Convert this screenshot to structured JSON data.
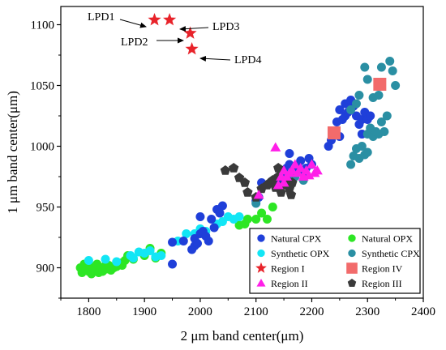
{
  "chart_data": {
    "type": "scatter",
    "xlabel": "2 μm band center(μm)",
    "ylabel": "1 μm band center(μm)",
    "xlim": [
      1750,
      2400
    ],
    "ylim": [
      875,
      1115
    ],
    "xticks": [
      1800,
      1900,
      2000,
      2100,
      2200,
      2300,
      2400
    ],
    "yticks": [
      900,
      950,
      1000,
      1050,
      1100
    ],
    "grid": false,
    "legend_position": "bottom-right",
    "colors": {
      "natural_cpx": "#1f3fd9",
      "synthetic_opx": "#12e6f5",
      "region_i": "#e8232a",
      "region_ii": "#ff1fe8",
      "natural_opx": "#2de624",
      "synthetic_cpx": "#2a8fa3",
      "region_iv": "#f26b6b",
      "region_iii": "#3a3a3a"
    },
    "series": [
      {
        "name": "Natural CPX",
        "key": "natural_cpx",
        "marker": "circle",
        "points": [
          [
            1950,
            903
          ],
          [
            1950,
            921
          ],
          [
            1970,
            922
          ],
          [
            1985,
            915
          ],
          [
            1990,
            918
          ],
          [
            1990,
            924
          ],
          [
            1995,
            920
          ],
          [
            2000,
            928
          ],
          [
            2000,
            942
          ],
          [
            2005,
            930
          ],
          [
            2010,
            926
          ],
          [
            2015,
            922
          ],
          [
            2020,
            940
          ],
          [
            2025,
            933
          ],
          [
            2030,
            948
          ],
          [
            2035,
            945
          ],
          [
            2040,
            951
          ],
          [
            2100,
            955
          ],
          [
            2105,
            958
          ],
          [
            2110,
            970
          ],
          [
            2140,
            972
          ],
          [
            2150,
            976
          ],
          [
            2155,
            982
          ],
          [
            2160,
            985
          ],
          [
            2160,
            994
          ],
          [
            2165,
            975
          ],
          [
            2170,
            980
          ],
          [
            2175,
            984
          ],
          [
            2180,
            988
          ],
          [
            2185,
            978
          ],
          [
            2190,
            982
          ],
          [
            2195,
            990
          ],
          [
            2200,
            985
          ],
          [
            2230,
            1000
          ],
          [
            2235,
            1005
          ],
          [
            2240,
            1012
          ],
          [
            2245,
            1020
          ],
          [
            2250,
            1030
          ],
          [
            2255,
            1022
          ],
          [
            2260,
            1025
          ],
          [
            2260,
            1035
          ],
          [
            2265,
            1028
          ],
          [
            2270,
            1038
          ],
          [
            2275,
            1033
          ],
          [
            2280,
            1025
          ],
          [
            2285,
            1018
          ],
          [
            2290,
            1022
          ],
          [
            2295,
            1028
          ],
          [
            2300,
            1022
          ],
          [
            2305,
            1025
          ],
          [
            2290,
            1010
          ],
          [
            2250,
            1008
          ]
        ]
      },
      {
        "name": "Synthetic OPX",
        "key": "synthetic_opx",
        "marker": "circle",
        "points": [
          [
            1800,
            906
          ],
          [
            1830,
            907
          ],
          [
            1850,
            905
          ],
          [
            1875,
            910
          ],
          [
            1880,
            908
          ],
          [
            1890,
            913
          ],
          [
            1900,
            912
          ],
          [
            1910,
            914
          ],
          [
            1920,
            909
          ],
          [
            1930,
            910
          ],
          [
            1960,
            922
          ],
          [
            1975,
            928
          ],
          [
            1990,
            928
          ],
          [
            2000,
            932
          ],
          [
            2010,
            930
          ],
          [
            2030,
            936
          ],
          [
            2040,
            938
          ],
          [
            2050,
            942
          ],
          [
            2060,
            940
          ],
          [
            2070,
            942
          ]
        ]
      },
      {
        "name": "Region I",
        "key": "region_i",
        "marker": "star",
        "points": [
          [
            1918,
            1104
          ],
          [
            1945,
            1104
          ],
          [
            1982,
            1093
          ],
          [
            1985,
            1080
          ]
        ]
      },
      {
        "name": "Region II",
        "key": "region_ii",
        "marker": "triangle",
        "points": [
          [
            2105,
            960
          ],
          [
            2135,
            999
          ],
          [
            2140,
            968
          ],
          [
            2145,
            975
          ],
          [
            2150,
            980
          ],
          [
            2150,
            970
          ],
          [
            2155,
            975
          ],
          [
            2160,
            978
          ],
          [
            2165,
            980
          ],
          [
            2170,
            985
          ],
          [
            2175,
            978
          ],
          [
            2180,
            982
          ],
          [
            2185,
            975
          ],
          [
            2190,
            980
          ],
          [
            2195,
            976
          ],
          [
            2200,
            985
          ],
          [
            2205,
            978
          ],
          [
            2210,
            980
          ]
        ]
      },
      {
        "name": "Natural OPX",
        "key": "natural_opx",
        "marker": "circle",
        "points": [
          [
            1785,
            900
          ],
          [
            1788,
            896
          ],
          [
            1792,
            903
          ],
          [
            1795,
            898
          ],
          [
            1800,
            897
          ],
          [
            1802,
            902
          ],
          [
            1805,
            895
          ],
          [
            1808,
            900
          ],
          [
            1812,
            898
          ],
          [
            1815,
            903
          ],
          [
            1818,
            896
          ],
          [
            1822,
            900
          ],
          [
            1825,
            897
          ],
          [
            1828,
            901
          ],
          [
            1832,
            899
          ],
          [
            1836,
            902
          ],
          [
            1840,
            898
          ],
          [
            1845,
            900
          ],
          [
            1850,
            901
          ],
          [
            1855,
            904
          ],
          [
            1860,
            902
          ],
          [
            1865,
            906
          ],
          [
            1870,
            910
          ],
          [
            1880,
            907
          ],
          [
            1900,
            910
          ],
          [
            1910,
            916
          ],
          [
            1920,
            908
          ],
          [
            1930,
            912
          ],
          [
            2070,
            935
          ],
          [
            2080,
            936
          ],
          [
            2085,
            940
          ],
          [
            2100,
            940
          ],
          [
            2110,
            945
          ],
          [
            2120,
            940
          ],
          [
            2130,
            950
          ]
        ]
      },
      {
        "name": "Synthetic CPX",
        "key": "synthetic_cpx",
        "marker": "circle",
        "points": [
          [
            2100,
            953
          ],
          [
            2160,
            970
          ],
          [
            2170,
            975
          ],
          [
            2185,
            972
          ],
          [
            2270,
            985
          ],
          [
            2275,
            992
          ],
          [
            2280,
            998
          ],
          [
            2285,
            990
          ],
          [
            2290,
            1000
          ],
          [
            2295,
            993
          ],
          [
            2300,
            995
          ],
          [
            2300,
            1010
          ],
          [
            2305,
            1015
          ],
          [
            2310,
            1008
          ],
          [
            2315,
            1012
          ],
          [
            2320,
            1010
          ],
          [
            2325,
            1020
          ],
          [
            2330,
            1012
          ],
          [
            2335,
            1025
          ],
          [
            2295,
            1065
          ],
          [
            2300,
            1055
          ],
          [
            2325,
            1065
          ],
          [
            2340,
            1070
          ],
          [
            2345,
            1062
          ],
          [
            2350,
            1050
          ],
          [
            2310,
            1040
          ],
          [
            2320,
            1042
          ],
          [
            2270,
            1030
          ],
          [
            2280,
            1035
          ],
          [
            2285,
            1042
          ]
        ]
      },
      {
        "name": "Region IV",
        "key": "region_iv",
        "marker": "square",
        "points": [
          [
            2240,
            1011
          ],
          [
            2322,
            1051
          ]
        ]
      },
      {
        "name": "Region III",
        "key": "region_iii",
        "marker": "pentagon",
        "points": [
          [
            2045,
            980
          ],
          [
            2060,
            982
          ],
          [
            2070,
            974
          ],
          [
            2080,
            970
          ],
          [
            2085,
            962
          ],
          [
            2100,
            958
          ],
          [
            2110,
            965
          ],
          [
            2120,
            968
          ],
          [
            2125,
            970
          ],
          [
            2130,
            972
          ],
          [
            2135,
            966
          ],
          [
            2140,
            975
          ],
          [
            2145,
            962
          ],
          [
            2150,
            968
          ],
          [
            2155,
            972
          ],
          [
            2160,
            965
          ],
          [
            2163,
            960
          ],
          [
            2165,
            970
          ],
          [
            2140,
            982
          ]
        ]
      }
    ],
    "legend": [
      {
        "label": "Natural CPX",
        "key": "natural_cpx",
        "marker": "circle"
      },
      {
        "label": "Natural OPX",
        "key": "natural_opx",
        "marker": "circle"
      },
      {
        "label": "Synthetic OPX",
        "key": "synthetic_opx",
        "marker": "circle"
      },
      {
        "label": "Synthetic CPX",
        "key": "synthetic_cpx",
        "marker": "circle"
      },
      {
        "label": "Region I",
        "key": "region_i",
        "marker": "star"
      },
      {
        "label": "Region IV",
        "key": "region_iv",
        "marker": "square"
      },
      {
        "label": "Region II",
        "key": "region_ii",
        "marker": "triangle"
      },
      {
        "label": "Region III",
        "key": "region_iii",
        "marker": "pentagon"
      }
    ],
    "annotations": [
      {
        "text": "LPD1",
        "target": [
          1918,
          1104
        ]
      },
      {
        "text": "LPD3",
        "target": [
          1945,
          1104
        ]
      },
      {
        "text": "LPD2",
        "target": [
          1982,
          1093
        ]
      },
      {
        "text": "LPD4",
        "target": [
          1985,
          1080
        ]
      }
    ]
  }
}
